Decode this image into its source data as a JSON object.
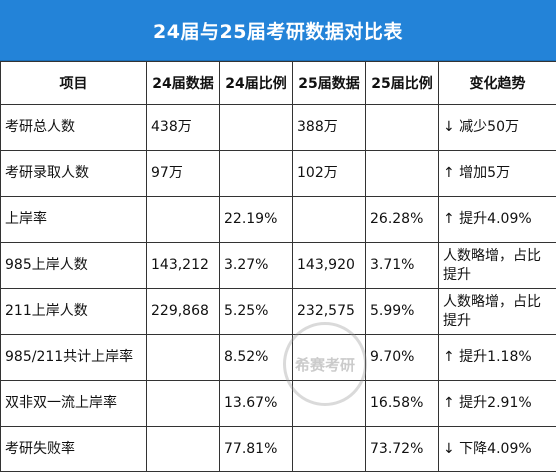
{
  "title": "24届与25届考研数据对比表",
  "colors": {
    "header_blue": "#2383d8"
  },
  "watermark": {
    "seal_text": "希赛考研"
  },
  "table": {
    "headers": [
      "项目",
      "24届数据",
      "24届比例",
      "25届数据",
      "25届比例",
      "变化趋势"
    ],
    "rows": [
      {
        "item": "考研总人数",
        "d24": "438万",
        "p24": "",
        "d25": "388万",
        "p25": "",
        "trend": "↓ 减少50万"
      },
      {
        "item": "考研录取人数",
        "d24": "97万",
        "p24": "",
        "d25": "102万",
        "p25": "",
        "trend": "↑ 增加5万"
      },
      {
        "item": "上岸率",
        "d24": "",
        "p24": "22.19%",
        "d25": "",
        "p25": "26.28%",
        "trend": "↑ 提升4.09%"
      },
      {
        "item": "985上岸人数",
        "d24": "143,212",
        "p24": "3.27%",
        "d25": "143,920",
        "p25": "3.71%",
        "trend": "人数略增，占比提升"
      },
      {
        "item": "211上岸人数",
        "d24": "229,868",
        "p24": "5.25%",
        "d25": "232,575",
        "p25": "5.99%",
        "trend": "人数略增，占比提升"
      },
      {
        "item": "985/211共计上岸率",
        "d24": "",
        "p24": "8.52%",
        "d25": "",
        "p25": "9.70%",
        "trend": "↑ 提升1.18%"
      },
      {
        "item": "双非双一流上岸率",
        "d24": "",
        "p24": "13.67%",
        "d25": "",
        "p25": "16.58%",
        "trend": "↑ 提升2.91%"
      },
      {
        "item": "考研失败率",
        "d24": "",
        "p24": "77.81%",
        "d25": "",
        "p25": "73.72%",
        "trend": "↓ 下降4.09%"
      }
    ]
  }
}
